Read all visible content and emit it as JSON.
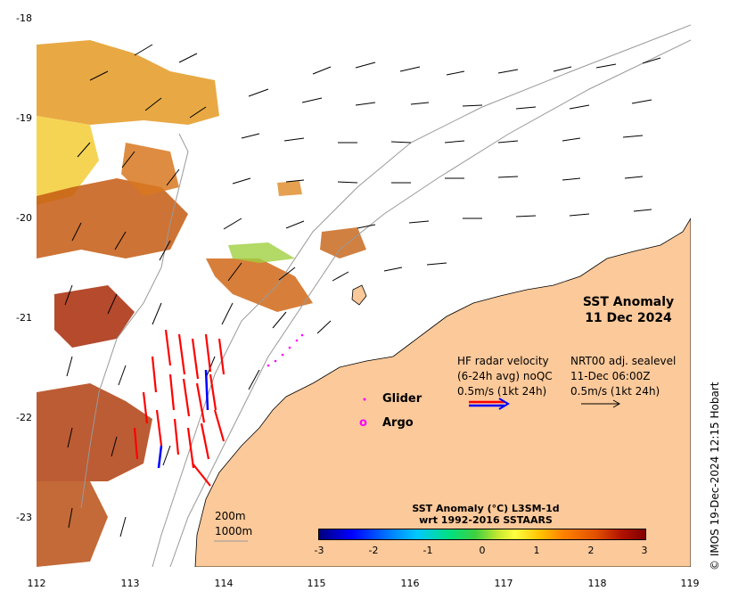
{
  "title": {
    "line1": "SST Anomaly",
    "line2": "11 Dec 2024"
  },
  "axes": {
    "lat_labels": [
      "-18",
      "-19",
      "-20",
      "-21",
      "-22",
      "-23"
    ],
    "lon_labels": [
      "112",
      "113",
      "114",
      "115",
      "116",
      "117",
      "118",
      "119"
    ]
  },
  "legend": {
    "glider_label": "Glider",
    "argo_label": "Argo",
    "argo_symbol": "o",
    "hf_line1": "HF radar velocity",
    "hf_line2": "(6-24h avg) noQC",
    "hf_line3": "0.5m/s (1kt 24h)",
    "nrt_line1": "NRT00 adj. sealevel",
    "nrt_line2": "11-Dec 06:00Z",
    "nrt_line3": "0.5m/s (1kt 24h)"
  },
  "colorbar": {
    "title_line1": "SST Anomaly (°C) L3SM-1d",
    "title_line2": "wrt 1992-2016 SSTAARS",
    "ticks": [
      "-3",
      "-2",
      "-1",
      "0",
      "1",
      "2",
      "3"
    ],
    "range": [
      -3,
      3
    ]
  },
  "scale_labels": {
    "depth1": "200m",
    "depth2": "1000m"
  },
  "credit": "© IMOS 19-Dec-2024 12:15 Hobart",
  "colors": {
    "land": "#fcc99a",
    "hf_arrow": "#ff0000",
    "hf_arrow_alt": "#0000ff",
    "glider": "#ff00ff",
    "argo": "#ff00ff",
    "contour": "#999999"
  }
}
